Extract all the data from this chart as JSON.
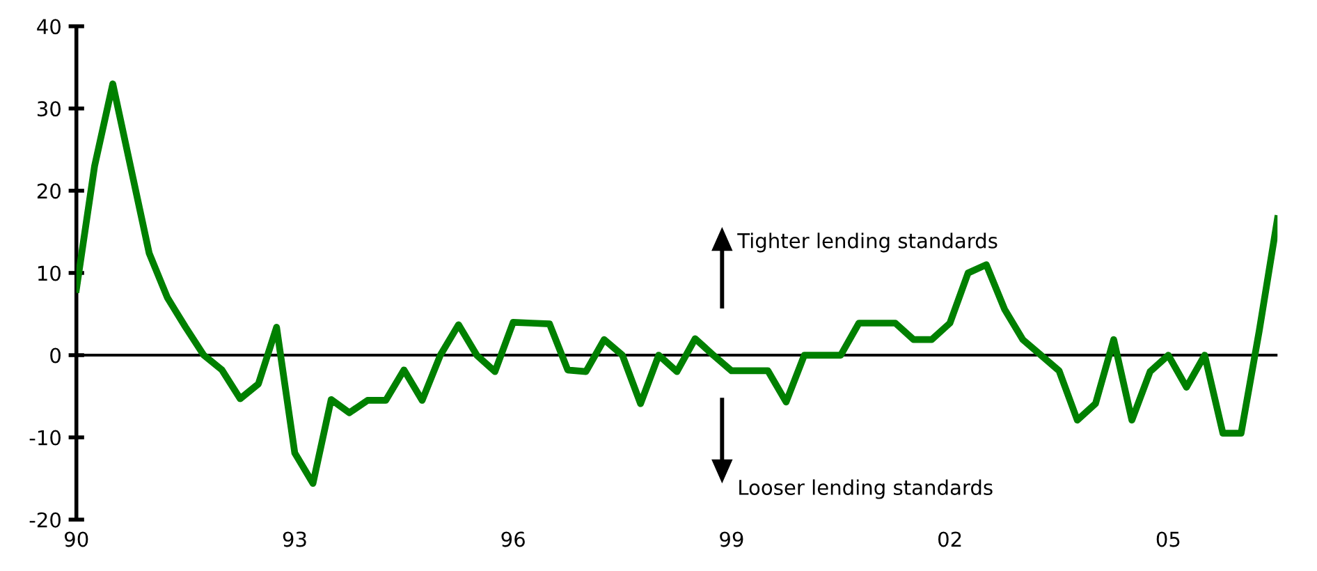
{
  "chart_data": {
    "type": "line",
    "x": [
      1990.0,
      1990.25,
      1990.5,
      1990.75,
      1991.0,
      1991.25,
      1991.5,
      1991.75,
      1992.0,
      1992.25,
      1992.5,
      1992.75,
      1993.0,
      1993.25,
      1993.5,
      1993.75,
      1994.0,
      1994.25,
      1994.5,
      1994.75,
      1995.0,
      1995.25,
      1995.5,
      1995.75,
      1996.0,
      1996.25,
      1996.5,
      1996.75,
      1997.0,
      1997.25,
      1997.5,
      1997.75,
      1998.0,
      1998.25,
      1998.5,
      1998.75,
      1999.0,
      1999.25,
      1999.5,
      1999.75,
      2000.0,
      2000.25,
      2000.5,
      2000.75,
      2001.0,
      2001.25,
      2001.5,
      2001.75,
      2002.0,
      2002.25,
      2002.5,
      2002.75,
      2003.0,
      2003.25,
      2003.5,
      2003.75,
      2004.0,
      2004.25,
      2004.5,
      2004.75,
      2005.0,
      2005.25,
      2005.5,
      2005.75,
      2006.0,
      2006.25,
      2006.5
    ],
    "series": [
      {
        "color": "#008000",
        "values": [
          8,
          23,
          33,
          22.7,
          12.4,
          7,
          3.4,
          0,
          -1.8,
          -5.3,
          -3.5,
          3.4,
          -11.9,
          -15.6,
          -5.4,
          -7,
          -5.5,
          -5.5,
          -1.8,
          -5.5,
          0,
          3.7,
          0,
          -2,
          4,
          3.9,
          3.8,
          -1.8,
          -2,
          1.9,
          0,
          -5.9,
          0,
          -2,
          2,
          0,
          -1.9,
          -1.9,
          -1.9,
          -5.7,
          0,
          0,
          0,
          3.9,
          3.9,
          3.9,
          1.9,
          1.9,
          3.9,
          10,
          11,
          5.6,
          1.9,
          0,
          -1.9,
          -7.9,
          -5.9,
          1.9,
          -7.9,
          -2,
          0,
          -3.9,
          0,
          -9.5,
          -9.5,
          3,
          16.6
        ]
      }
    ],
    "xlim": [
      1990,
      2006.5
    ],
    "xticks": [
      {
        "value": 1990,
        "label": "90"
      },
      {
        "value": 1993,
        "label": "93"
      },
      {
        "value": 1996,
        "label": "96"
      },
      {
        "value": 1999,
        "label": "99"
      },
      {
        "value": 2002,
        "label": "02"
      },
      {
        "value": 2005,
        "label": "05"
      }
    ],
    "ylim": [
      -20,
      40
    ],
    "yticks": [
      -20,
      -10,
      0,
      10,
      20,
      30,
      40
    ],
    "ref_lines": [
      {
        "axis": "y",
        "value": 0,
        "color": "#000000"
      }
    ],
    "annotations": [
      "Tighter lending standards",
      "Looser lending standards"
    ],
    "grid": false,
    "legend": false,
    "marker": "none",
    "line_style": "solid"
  }
}
